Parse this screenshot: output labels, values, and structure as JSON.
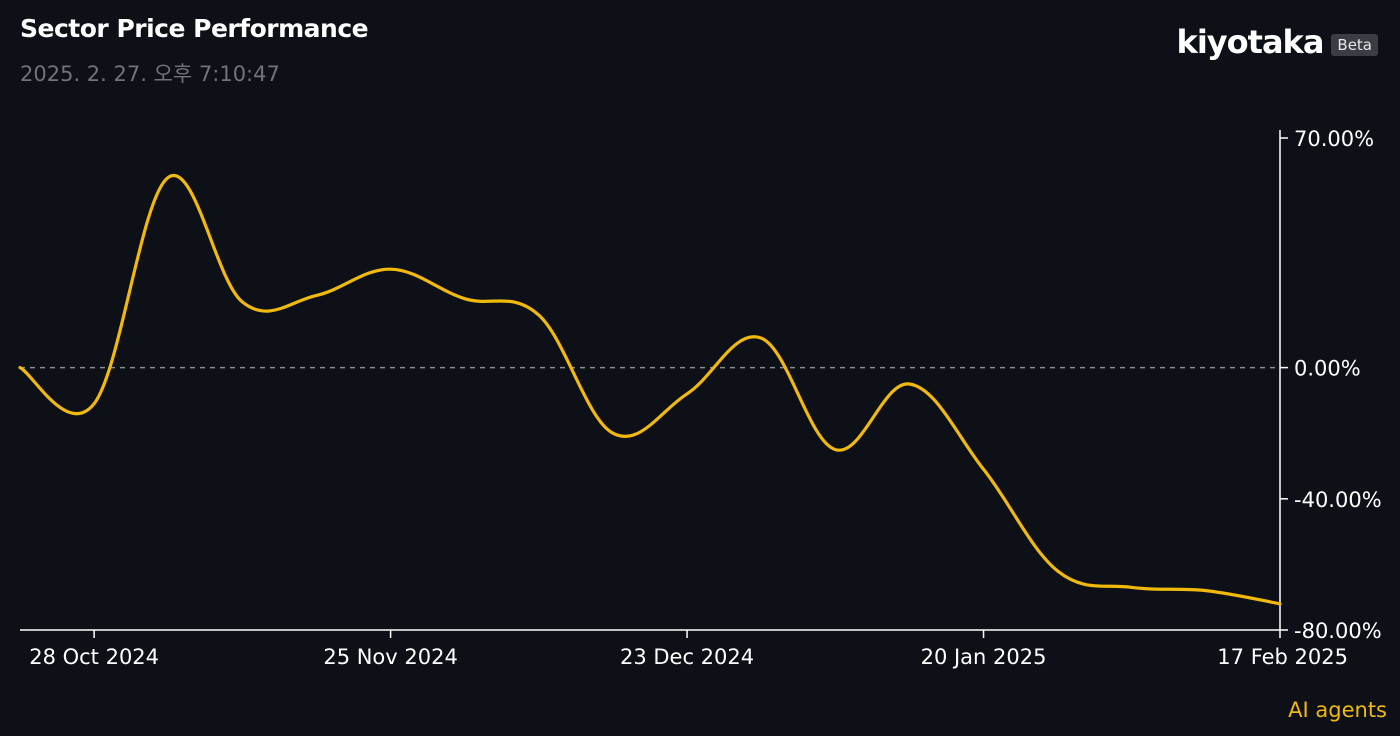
{
  "header": {
    "title": "Sector Price Performance",
    "timestamp": "2025. 2. 27. 오후 7:10:47"
  },
  "brand": {
    "name": "kiyotaka",
    "badge": "Beta"
  },
  "footer": {
    "label": "AI agents"
  },
  "colors": {
    "background": "#0d1017",
    "line": "#f0b90b",
    "axis": "#ffffff",
    "zero_line": "#8a8d94"
  },
  "chart_data": {
    "type": "line",
    "title": "Sector Price Performance",
    "xlabel": "",
    "ylabel": "",
    "x_tick_labels": [
      "28 Oct 2024",
      "25 Nov 2024",
      "23 Dec 2024",
      "20 Jan 2025",
      "17 Feb 2025"
    ],
    "y_tick_labels": [
      "70.00%",
      "0.00%",
      "-40.00%",
      "-80.00%"
    ],
    "y_tick_values": [
      70,
      0,
      -40,
      -80
    ],
    "ylim": [
      -80,
      70
    ],
    "xlim": [
      "2024-10-21",
      "2025-02-17"
    ],
    "zero_line": true,
    "grid": false,
    "series": [
      {
        "values": [
          {
            "x": "2024-10-21",
            "y": 0
          },
          {
            "x": "2024-10-28",
            "y": -11
          },
          {
            "x": "2024-11-04",
            "y": 58
          },
          {
            "x": "2024-11-11",
            "y": 20
          },
          {
            "x": "2024-11-18",
            "y": 22
          },
          {
            "x": "2024-11-25",
            "y": 30
          },
          {
            "x": "2024-12-02",
            "y": 21
          },
          {
            "x": "2024-12-09",
            "y": 16
          },
          {
            "x": "2024-12-16",
            "y": -20
          },
          {
            "x": "2024-12-23",
            "y": -8
          },
          {
            "x": "2024-12-30",
            "y": 9
          },
          {
            "x": "2025-01-06",
            "y": -25
          },
          {
            "x": "2025-01-13",
            "y": -5
          },
          {
            "x": "2025-01-20",
            "y": -31
          },
          {
            "x": "2025-01-27",
            "y": -62
          },
          {
            "x": "2025-02-03",
            "y": -67
          },
          {
            "x": "2025-02-10",
            "y": -68
          },
          {
            "x": "2025-02-17",
            "y": -72
          }
        ]
      }
    ]
  }
}
